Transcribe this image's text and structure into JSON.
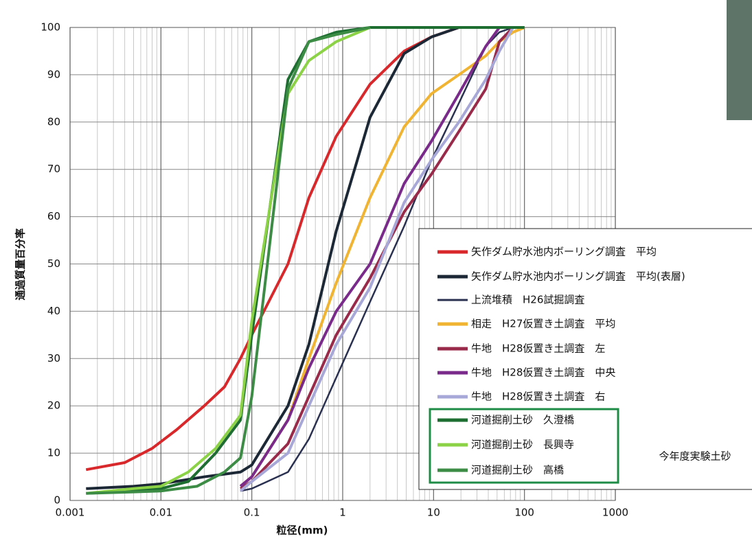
{
  "chart_data": {
    "type": "line",
    "x_label": "粒径(mm)",
    "y_label": "通過質量百分率",
    "annotation": "今年度実験土砂",
    "xlim": [
      0.001,
      1000
    ],
    "xticks": [
      0.001,
      0.01,
      0.1,
      1,
      10,
      100,
      1000
    ],
    "x_log": true,
    "ylim": [
      0,
      100
    ],
    "yticks": [
      0,
      10,
      20,
      30,
      40,
      50,
      60,
      70,
      80,
      90,
      100
    ],
    "grid": true,
    "series": [
      {
        "name": "矢作ダム貯水池内ボーリング調査　平均",
        "color": "#d9282c",
        "x": [
          0.0015,
          0.004,
          0.008,
          0.015,
          0.03,
          0.05,
          0.075,
          0.1,
          0.25,
          0.425,
          0.85,
          2,
          4.75,
          9.5,
          19,
          100
        ],
        "values": [
          6.5,
          8,
          11,
          15,
          20,
          24,
          30,
          35,
          50,
          64,
          77,
          88,
          95,
          98,
          100,
          100
        ]
      },
      {
        "name": "矢作ダム貯水池内ボーリング調査　平均(表層)",
        "color": "#1c2836",
        "x": [
          0.0015,
          0.005,
          0.01,
          0.03,
          0.075,
          0.1,
          0.25,
          0.425,
          0.85,
          2,
          4.75,
          9.5,
          19,
          100
        ],
        "values": [
          2.5,
          3,
          3.5,
          5,
          6,
          7.5,
          20,
          33,
          57,
          81,
          94.5,
          98,
          100,
          100
        ]
      },
      {
        "name": "上流堆積　H26試掘調査",
        "color": "#2a3050",
        "x": [
          0.075,
          0.1,
          0.25,
          0.425,
          0.85,
          2,
          4.75,
          9.5,
          19,
          37.5,
          53,
          75
        ],
        "values": [
          2,
          2.5,
          6,
          13,
          26,
          42,
          58,
          72,
          84,
          96,
          99,
          100
        ]
      },
      {
        "name": "相走　H27仮置き土調査　平均",
        "color": "#f0b432",
        "x": [
          0.075,
          0.1,
          0.25,
          0.425,
          0.85,
          2,
          4.75,
          9.5,
          19,
          37.5,
          53,
          75,
          100
        ],
        "values": [
          3,
          5,
          17,
          30,
          46,
          64,
          79,
          86,
          90,
          94,
          97,
          99,
          100
        ]
      },
      {
        "name": "牛地　H28仮置き土調査　左",
        "color": "#9a2a4a",
        "x": [
          0.075,
          0.1,
          0.25,
          0.425,
          0.85,
          2,
          4.75,
          9.5,
          19,
          37.5,
          53,
          75
        ],
        "values": [
          2.5,
          4,
          12,
          22,
          35,
          47,
          61,
          69,
          78,
          87,
          97,
          100
        ]
      },
      {
        "name": "牛地　H28仮置き土調査　中央",
        "color": "#7a2a8a",
        "x": [
          0.075,
          0.1,
          0.25,
          0.425,
          0.85,
          2,
          4.75,
          9.5,
          19,
          37.5,
          53
        ],
        "values": [
          3,
          5,
          17,
          28,
          40,
          50,
          67,
          76,
          86,
          96,
          100
        ]
      },
      {
        "name": "牛地　H28仮置き土調査　右",
        "color": "#a8a8d8",
        "x": [
          0.075,
          0.1,
          0.25,
          0.425,
          0.85,
          2,
          4.75,
          9.5,
          19,
          37.5,
          53,
          75
        ],
        "values": [
          2,
          4,
          10,
          20,
          33,
          45,
          63,
          72,
          80,
          89,
          95,
          100
        ]
      },
      {
        "name": "河道掘削土砂　久澄橋",
        "color": "#1e6e32",
        "x": [
          0.0015,
          0.005,
          0.01,
          0.02,
          0.04,
          0.075,
          0.1,
          0.25,
          0.425,
          0.85,
          2,
          100
        ],
        "values": [
          1.5,
          2,
          2.5,
          4,
          10,
          17,
          35,
          89,
          97,
          99,
          100,
          100
        ]
      },
      {
        "name": "河道掘削土砂　長興寺",
        "color": "#8cd246",
        "x": [
          0.0015,
          0.005,
          0.01,
          0.02,
          0.04,
          0.075,
          0.1,
          0.25,
          0.425,
          0.85,
          2
        ],
        "values": [
          1.5,
          2.5,
          3,
          6,
          11,
          18,
          38,
          86,
          93,
          97,
          100
        ]
      },
      {
        "name": "河道掘削土砂　高橋",
        "color": "#3c8c46",
        "x": [
          0.0015,
          0.005,
          0.01,
          0.025,
          0.05,
          0.075,
          0.1,
          0.25,
          0.425,
          0.85,
          2
        ],
        "values": [
          1.5,
          1.8,
          2,
          3,
          6,
          9,
          22,
          87,
          97,
          98.5,
          100
        ]
      }
    ]
  }
}
